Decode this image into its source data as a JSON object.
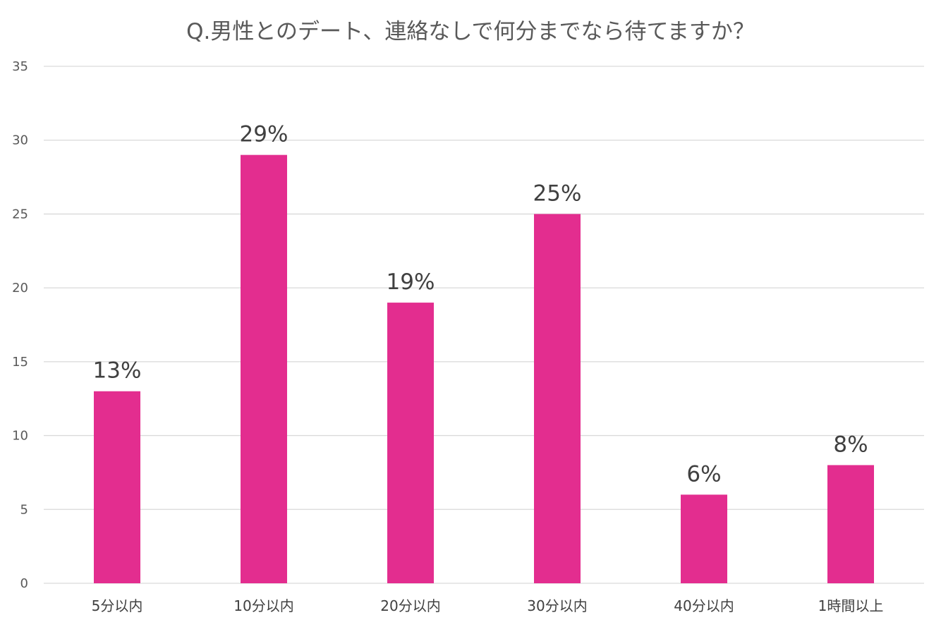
{
  "chart_data": {
    "type": "bar",
    "title": "Q.男性とのデート、連絡なしで何分までなら待てますか？",
    "xlabel": "",
    "ylabel": "",
    "categories": [
      "5分以内",
      "10分以内",
      "20分以内",
      "30分以内",
      "40分以内",
      "1時間以上"
    ],
    "values": [
      13,
      29,
      19,
      25,
      6,
      8
    ],
    "data_labels": [
      "13%",
      "29%",
      "19%",
      "25%",
      "6%",
      "8%"
    ],
    "ylim": [
      0,
      35
    ],
    "yticks": [
      0,
      5,
      10,
      15,
      20,
      25,
      30,
      35
    ],
    "grid": true,
    "legend": "none",
    "bar_color": "#e32d8f"
  }
}
